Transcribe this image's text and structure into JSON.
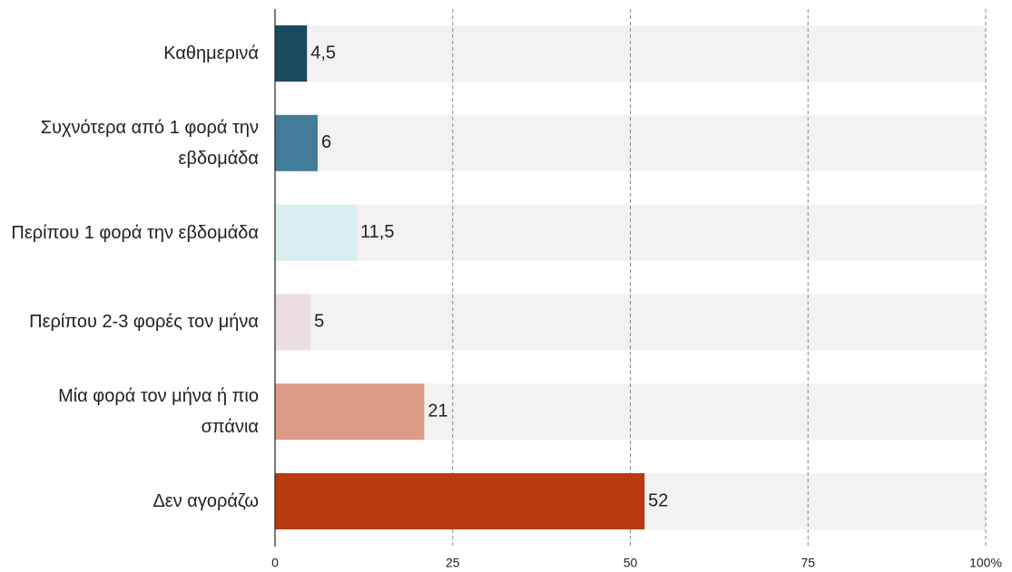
{
  "chart_data": {
    "type": "bar",
    "orientation": "horizontal",
    "categories": [
      "Καθημερινά",
      "Συχνότερα από 1 φορά την εβδομάδα",
      "Περίπου 1 φορά την εβδομάδα",
      "Περίπου 2-3  φορές τον μήνα",
      "Μία φορά τον μήνα ή πιο σπάνια",
      "Δεν αγοράζω"
    ],
    "values": [
      4.5,
      6,
      11.5,
      5,
      21,
      52
    ],
    "value_labels": [
      "4,5",
      "6",
      "11,5",
      "5",
      "21",
      "52"
    ],
    "colors": [
      "#1a4a5e",
      "#437c9a",
      "#d8eef0",
      "#ecdde0",
      "#db9b85",
      "#b93a10"
    ],
    "xlim": [
      0,
      100
    ],
    "xticks": [
      0,
      25,
      50,
      75,
      {
        "value": 100,
        "label": "100%"
      }
    ],
    "grid": true
  }
}
